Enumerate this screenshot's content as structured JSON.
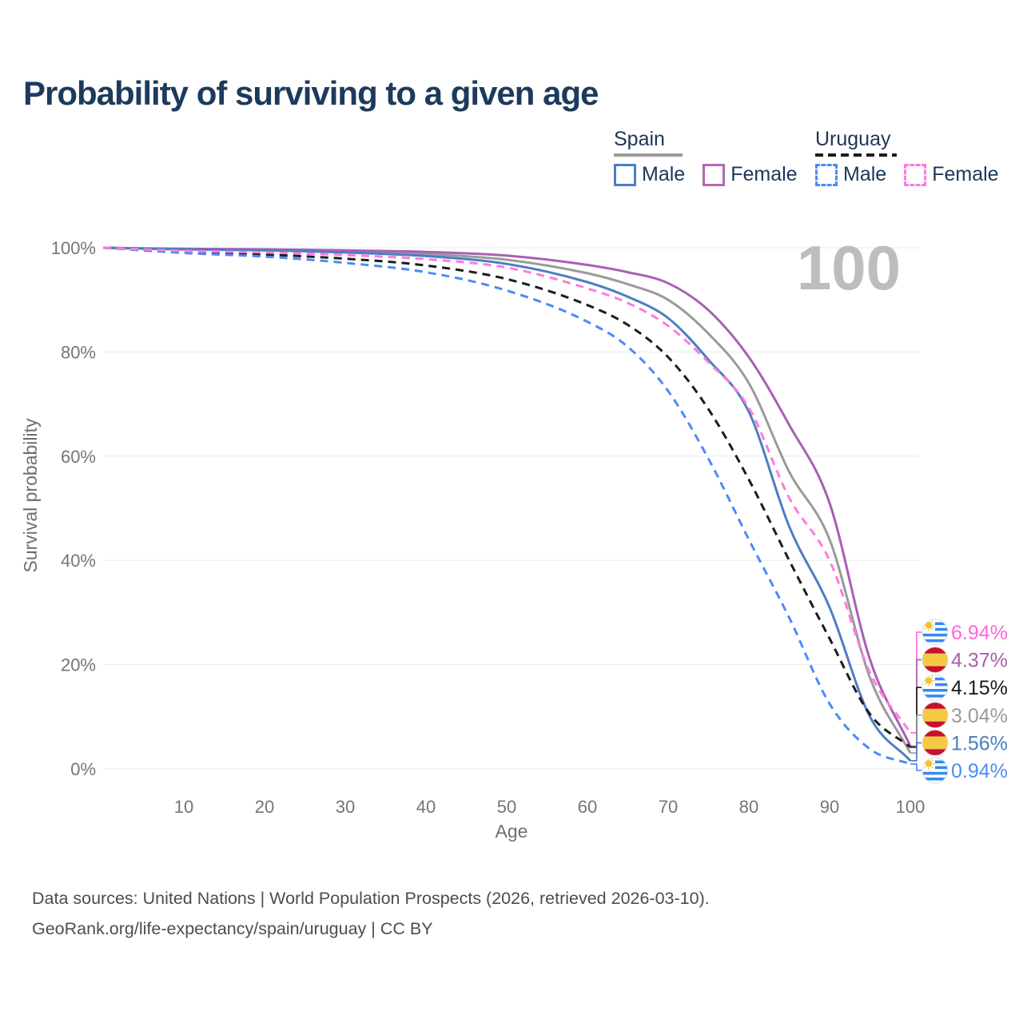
{
  "title": "Probability of surviving to a given age",
  "legend": {
    "groups": [
      {
        "label": "Spain",
        "line_style": "solid",
        "underline_color": "#9a9a9a",
        "items": [
          {
            "label": "Male",
            "color": "#4d7ec3"
          },
          {
            "label": "Female",
            "color": "#b16ab1"
          }
        ]
      },
      {
        "label": "Uruguay",
        "line_style": "dashed",
        "underline_color": "#1c1c1c",
        "items": [
          {
            "label": "Male",
            "color": "#4b8bf7"
          },
          {
            "label": "Female",
            "color": "#ff7ade"
          }
        ]
      }
    ]
  },
  "chart_data": {
    "type": "line",
    "title": "Probability of surviving to a given age",
    "xlabel": "Age",
    "ylabel": "Survival probability",
    "xlim": [
      0,
      100
    ],
    "ylim": [
      0,
      100
    ],
    "grid": true,
    "age_counter": "100",
    "x_ticks": [
      10,
      20,
      30,
      40,
      50,
      60,
      70,
      80,
      90,
      100
    ],
    "y_ticks": [
      {
        "v": 0,
        "label": "0%"
      },
      {
        "v": 20,
        "label": "20%"
      },
      {
        "v": 40,
        "label": "40%"
      },
      {
        "v": 60,
        "label": "60%"
      },
      {
        "v": 80,
        "label": "80%"
      },
      {
        "v": 100,
        "label": "100%"
      }
    ],
    "x": [
      0,
      10,
      20,
      30,
      40,
      50,
      60,
      65,
      70,
      75,
      80,
      85,
      90,
      95,
      100
    ],
    "series": [
      {
        "name": "Spain Both sexes",
        "country": "Spain",
        "sex": "Both",
        "color": "#9a9a9a",
        "dashed": false,
        "values": [
          100,
          99.7,
          99.6,
          99.3,
          98.8,
          97.7,
          95.1,
          93.0,
          90.0,
          83.5,
          74.0,
          57.0,
          44.0,
          17.5,
          3.04
        ]
      },
      {
        "name": "Spain Female",
        "country": "Spain",
        "sex": "Female",
        "color": "#a95fb4",
        "dashed": false,
        "values": [
          100,
          99.8,
          99.7,
          99.5,
          99.2,
          98.5,
          96.7,
          95.3,
          93.2,
          88.0,
          79.0,
          66.0,
          51.0,
          21.0,
          4.37
        ]
      },
      {
        "name": "Spain Male",
        "country": "Spain",
        "sex": "Male",
        "color": "#4d7ec3",
        "dashed": false,
        "values": [
          100,
          99.7,
          99.5,
          99.1,
          98.4,
          96.9,
          93.4,
          90.6,
          86.5,
          78.5,
          68.5,
          46.5,
          31.0,
          10.0,
          1.56
        ]
      },
      {
        "name": "Uruguay Both sexes",
        "country": "Uruguay",
        "sex": "Both",
        "color": "#1c1c1c",
        "dashed": true,
        "values": [
          100,
          99.2,
          98.7,
          97.9,
          96.6,
          94.0,
          89.0,
          85.2,
          79.0,
          69.0,
          55.5,
          40.0,
          25.0,
          10.5,
          4.15
        ]
      },
      {
        "name": "Uruguay Male",
        "country": "Uruguay",
        "sex": "Male",
        "color": "#4b8bf7",
        "dashed": true,
        "values": [
          100,
          99.0,
          98.3,
          97.1,
          95.3,
          91.8,
          85.8,
          81.0,
          72.5,
          59.5,
          44.0,
          29.0,
          12.5,
          3.8,
          0.94
        ]
      },
      {
        "name": "Uruguay Female",
        "country": "Uruguay",
        "sex": "Female",
        "color": "#ff7ade",
        "dashed": true,
        "values": [
          100,
          99.4,
          99.1,
          98.6,
          97.8,
          96.2,
          92.2,
          89.4,
          85.0,
          78.0,
          69.3,
          52.0,
          40.0,
          18.5,
          6.94
        ]
      }
    ],
    "end_labels": [
      {
        "flag": "uruguay",
        "label": "6.94%",
        "color": "#ff66d9",
        "value_pct": 6.94
      },
      {
        "flag": "spain",
        "label": "4.37%",
        "color": "#a55fa8",
        "value_pct": 4.37
      },
      {
        "flag": "uruguay",
        "label": "4.15%",
        "color": "#1a1a1a",
        "value_pct": 4.15
      },
      {
        "flag": "spain",
        "label": "3.04%",
        "color": "#9a9a9a",
        "value_pct": 3.04
      },
      {
        "flag": "spain",
        "label": "1.56%",
        "color": "#4a7cc2",
        "value_pct": 1.56
      },
      {
        "flag": "uruguay",
        "label": "0.94%",
        "color": "#4b8bf7",
        "value_pct": 0.94
      }
    ]
  },
  "footer": {
    "line1": "Data sources: United Nations | World Population Prospects (2026, retrieved 2026-03-10).",
    "line2": "GeoRank.org/life-expectancy/spain/uruguay | CC BY"
  }
}
